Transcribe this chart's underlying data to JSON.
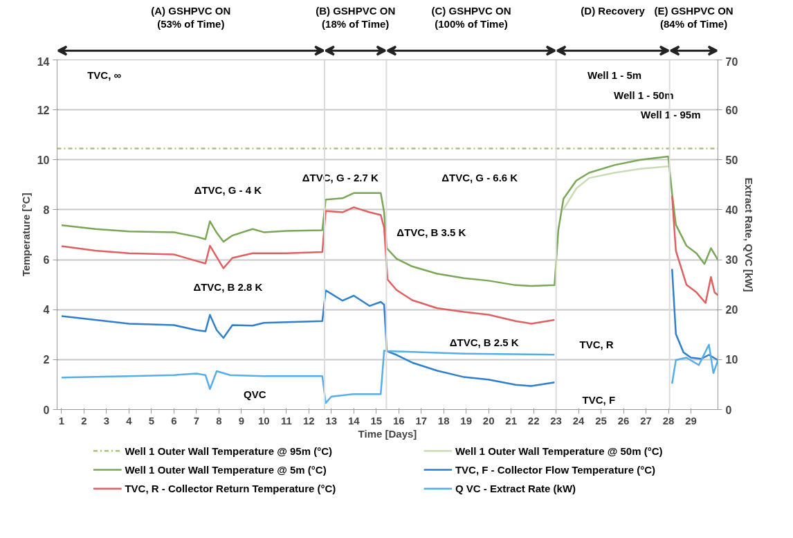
{
  "chart_data": {
    "type": "line",
    "xlabel": "Time [Days]",
    "ylabel": "Temperature [°C]",
    "y2label": "Extract Rate, QVC [kW]",
    "xlim": [
      0.8,
      30.2
    ],
    "xticks": [
      1,
      2,
      3,
      4,
      5,
      6,
      7,
      8,
      9,
      10,
      11,
      12,
      13,
      14,
      15,
      16,
      17,
      18,
      19,
      20,
      21,
      22,
      23,
      24,
      25,
      26,
      27,
      28,
      29
    ],
    "ylim": [
      0,
      14
    ],
    "yticks": [
      0,
      2,
      4,
      6,
      8,
      10,
      12,
      14
    ],
    "y2lim": [
      0,
      70
    ],
    "y2ticks": [
      0,
      10,
      20,
      30,
      40,
      50,
      60,
      70
    ],
    "grid": "y",
    "legend": "bottom",
    "series": [
      {
        "name": "Well 1 Outer Wall Temperature @ 95m (°C)",
        "color": "#a9c27a",
        "line_style": "dashed",
        "x": [
          0.8,
          30.2
        ],
        "values": [
          10.45,
          10.45
        ]
      },
      {
        "name": "Well 1 Outer Wall Temperature @ 50m (°C)",
        "color": "#c9dcb5",
        "x": [
          23.33,
          23.9,
          24.47,
          25.6,
          26.76,
          28.0
        ],
        "values": [
          8.02,
          8.85,
          9.27,
          9.48,
          9.64,
          9.74
        ]
      },
      {
        "name": "Well 1 Outer Wall Temperature @ 5m (°C)",
        "color": "#78a855",
        "x": [
          1,
          2.5,
          4,
          6,
          7,
          7.4,
          7.6,
          7.9,
          8.2,
          8.6,
          9.5,
          10,
          11,
          12.6,
          12.75,
          13.5,
          14,
          15.2,
          15.35,
          15.47,
          15.9,
          16.6,
          17.7,
          18.9,
          20.0,
          21.2,
          21.9,
          22.93,
          23.1,
          23.33,
          23.9,
          24.47,
          25.6,
          26.76,
          27.99,
          28.16,
          28.33,
          28.8,
          29.25,
          29.6,
          29.89,
          30.2
        ],
        "values": [
          7.38,
          7.23,
          7.13,
          7.1,
          6.92,
          6.82,
          7.54,
          7.08,
          6.72,
          6.97,
          7.23,
          7.1,
          7.15,
          7.18,
          8.41,
          8.46,
          8.67,
          8.67,
          7.9,
          6.46,
          6.04,
          5.73,
          5.44,
          5.26,
          5.16,
          4.98,
          4.95,
          4.98,
          7.19,
          8.44,
          9.17,
          9.48,
          9.79,
          10.0,
          10.13,
          8.65,
          7.4,
          6.56,
          6.25,
          5.83,
          6.46,
          5.99
        ]
      },
      {
        "name": "TVC, F - Collector Flow Temperature (°C)",
        "color": "#2f7fcf",
        "x": [
          1,
          2.5,
          4,
          6,
          7,
          7.4,
          7.6,
          7.9,
          8.2,
          8.6,
          9.5,
          10,
          12.6,
          12.75,
          13.5,
          14,
          14.7,
          15.2,
          15.35,
          15.47,
          15.9,
          16.6,
          17.7,
          18.9,
          20.0,
          21.2,
          21.9,
          22.93,
          25.5,
          28.16,
          28.33,
          28.67,
          29.0,
          29.46,
          29.8,
          30.2
        ],
        "values": [
          3.74,
          3.59,
          3.44,
          3.38,
          3.18,
          3.13,
          3.79,
          3.18,
          2.87,
          3.38,
          3.36,
          3.47,
          3.54,
          4.77,
          4.36,
          4.56,
          4.15,
          4.31,
          4.2,
          2.34,
          2.19,
          1.88,
          1.56,
          1.3,
          1.2,
          0.99,
          0.94,
          1.09,
          null,
          5.63,
          3.02,
          2.29,
          2.08,
          2.03,
          2.19,
          1.98
        ]
      },
      {
        "name": "TVC, R - Collector Return Temperature (°C)",
        "color": "#e06060",
        "x": [
          1,
          2.5,
          4,
          6,
          7,
          7.4,
          7.6,
          8.2,
          8.6,
          9.5,
          11,
          12.6,
          12.75,
          13.5,
          14,
          14.7,
          15.2,
          15.35,
          15.5,
          15.9,
          16.6,
          17.7,
          18.9,
          20.0,
          21.2,
          21.9,
          22.93,
          25.5,
          28.16,
          28.33,
          28.8,
          29.25,
          29.65,
          29.89,
          30.05,
          30.2
        ],
        "values": [
          6.54,
          6.36,
          6.26,
          6.21,
          5.95,
          5.85,
          6.56,
          5.66,
          6.07,
          6.26,
          6.26,
          6.31,
          7.95,
          7.9,
          8.1,
          7.9,
          7.79,
          7.28,
          5.21,
          4.79,
          4.38,
          4.06,
          3.91,
          3.8,
          3.54,
          3.44,
          3.59,
          null,
          8.54,
          6.35,
          5.0,
          4.69,
          4.27,
          5.31,
          4.69,
          4.58
        ]
      },
      {
        "name": "Q VC - Extract Rate (kW)",
        "color": "#56aee8",
        "axis": "y2",
        "x": [
          1,
          4,
          6,
          7,
          7.4,
          7.6,
          7.9,
          8.5,
          10,
          12.6,
          12.75,
          13,
          14,
          15.2,
          15.35,
          15.47,
          18.9,
          22.93,
          25.5,
          28.16,
          28.33,
          28.8,
          29.35,
          29.8,
          30.0,
          30.2
        ],
        "values": [
          6.4,
          6.7,
          6.9,
          7.2,
          6.9,
          4.1,
          7.7,
          6.9,
          6.7,
          6.7,
          1.3,
          2.6,
          3.1,
          3.1,
          11.8,
          11.7,
          11.2,
          11.0,
          null,
          5.2,
          9.9,
          10.4,
          8.9,
          13.0,
          7.3,
          9.9
        ]
      }
    ],
    "ref_lines": [
      {
        "axis": "x",
        "value": 12.7,
        "color": "#dcdcdc"
      },
      {
        "axis": "x",
        "value": 15.45,
        "color": "#dcdcdc"
      },
      {
        "axis": "x",
        "value": 23.0,
        "color": "#dcdcdc"
      },
      {
        "axis": "x",
        "value": 28.05,
        "color": "#dcdcdc"
      }
    ],
    "annotations": [
      "(A) GSHPVC ON\n(53% of Time)",
      "(B) GSHPVC ON\n(18% of Time)",
      "(C) GSHPVC ON\n(100% of Time)",
      "(D) Recovery",
      "(E) GSHPVC ON\n(84% of Time)",
      "TVC, ∞",
      "ΔTVC, G - 4 K",
      "ΔTVC, G - 2.7 K",
      "ΔTVC, B 2.8 K",
      "QVC",
      "ΔTVC, B 3.5 K",
      "ΔTVC, G - 6.6 K",
      "ΔTVC, B 2.5 K",
      "TVC, R",
      "TVC, F",
      "Well 1 - 5m",
      "Well 1 - 50m",
      "Well 1 - 95m"
    ]
  }
}
